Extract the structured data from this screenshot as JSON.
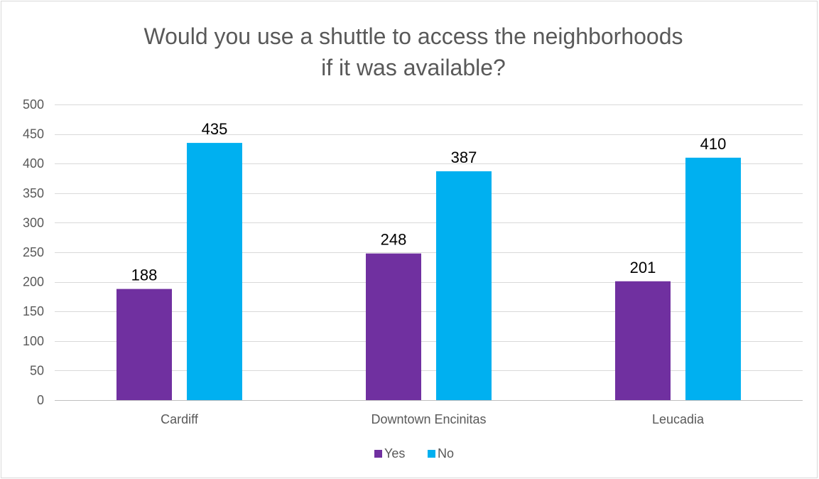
{
  "chart_data": {
    "type": "bar",
    "title_lines": [
      "Would you use a shuttle to access the neighborhoods",
      "if it was available?"
    ],
    "categories": [
      "Cardiff",
      "Downtown Encinitas",
      "Leucadia"
    ],
    "series": [
      {
        "name": "Yes",
        "values": [
          188,
          248,
          201
        ],
        "color": "#7030a0"
      },
      {
        "name": "No",
        "values": [
          435,
          387,
          410
        ],
        "color": "#00b0f0"
      }
    ],
    "ylim": [
      0,
      500
    ],
    "yticks": [
      0,
      50,
      100,
      150,
      200,
      250,
      300,
      350,
      400,
      450,
      500
    ],
    "grid": true,
    "legend_position": "bottom",
    "data_labels": true
  }
}
